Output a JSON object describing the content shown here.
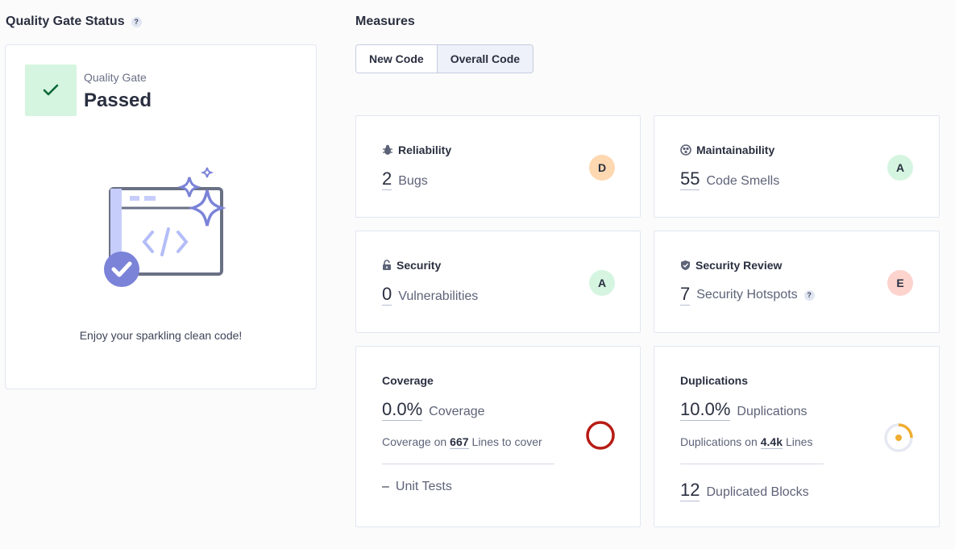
{
  "quality_gate": {
    "section_title": "Quality Gate Status",
    "help": "?",
    "label": "Quality Gate",
    "status": "Passed",
    "message": "Enjoy your sparkling clean code!"
  },
  "measures": {
    "section_title": "Measures",
    "tabs": [
      {
        "label": "New Code",
        "active": false
      },
      {
        "label": "Overall Code",
        "active": true
      }
    ],
    "reliability": {
      "title": "Reliability",
      "value": "2",
      "unit": "Bugs",
      "rating": "D",
      "rating_color": "#fed8b1"
    },
    "maintainability": {
      "title": "Maintainability",
      "value": "55",
      "unit": "Code Smells",
      "rating": "A",
      "rating_color": "#d5f5e0"
    },
    "security": {
      "title": "Security",
      "value": "0",
      "unit": "Vulnerabilities",
      "rating": "A",
      "rating_color": "#d5f5e0"
    },
    "security_review": {
      "title": "Security Review",
      "value": "7",
      "unit": "Security Hotspots",
      "help": "?",
      "rating": "E",
      "rating_color": "#fdd3ce"
    },
    "coverage": {
      "title": "Coverage",
      "value": "0.0%",
      "unit": "Coverage",
      "sub_prefix": "Coverage on",
      "sub_value": "667",
      "sub_suffix": "Lines to cover",
      "unit_tests_value": "–",
      "unit_tests_label": "Unit Tests",
      "indicator_color": "#b81b15"
    },
    "duplications": {
      "title": "Duplications",
      "value": "10.0%",
      "unit": "Duplications",
      "sub_prefix": "Duplications on",
      "sub_value": "4.4k",
      "sub_suffix": "Lines",
      "blocks_value": "12",
      "blocks_label": "Duplicated Blocks",
      "indicator_color": "#f0ad30"
    }
  }
}
